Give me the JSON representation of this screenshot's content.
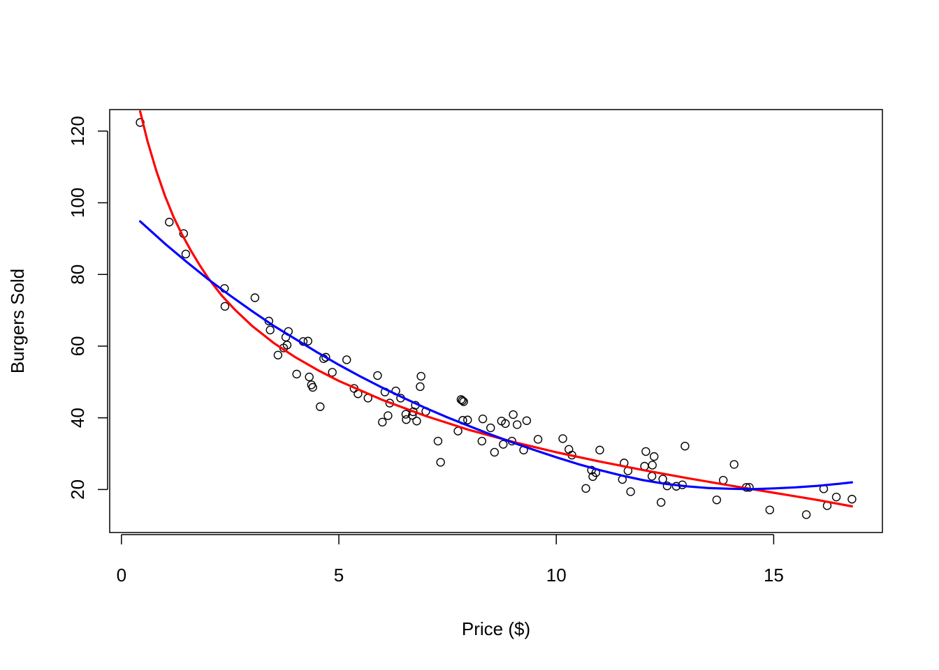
{
  "chart_data": {
    "type": "scatter",
    "title": "",
    "xlabel": "Price ($)",
    "ylabel": "Burgers Sold",
    "xlim": [
      -0.27,
      17.5
    ],
    "ylim": [
      8,
      126
    ],
    "xticks": [
      0,
      5,
      10,
      15
    ],
    "yticks": [
      20,
      40,
      60,
      80,
      100,
      120
    ],
    "grid": false,
    "legend": "none",
    "points": [
      [
        0.43,
        122.4
      ],
      [
        1.1,
        94.6
      ],
      [
        1.43,
        91.4
      ],
      [
        1.48,
        85.7
      ],
      [
        2.37,
        76.1
      ],
      [
        2.38,
        71.1
      ],
      [
        3.07,
        73.5
      ],
      [
        3.39,
        67.0
      ],
      [
        3.42,
        64.5
      ],
      [
        3.6,
        57.5
      ],
      [
        3.73,
        59.5
      ],
      [
        3.78,
        62.5
      ],
      [
        3.81,
        60.3
      ],
      [
        3.84,
        64.1
      ],
      [
        4.03,
        52.2
      ],
      [
        4.18,
        61.3
      ],
      [
        4.29,
        61.4
      ],
      [
        4.32,
        51.4
      ],
      [
        4.37,
        49.2
      ],
      [
        4.4,
        48.5
      ],
      [
        4.57,
        43.1
      ],
      [
        4.65,
        56.5
      ],
      [
        4.7,
        56.9
      ],
      [
        4.85,
        52.7
      ],
      [
        5.18,
        56.2
      ],
      [
        5.35,
        48.2
      ],
      [
        5.44,
        46.7
      ],
      [
        5.67,
        45.5
      ],
      [
        5.89,
        51.8
      ],
      [
        6.0,
        38.8
      ],
      [
        6.06,
        47.2
      ],
      [
        6.13,
        40.6
      ],
      [
        6.17,
        44.1
      ],
      [
        6.31,
        47.5
      ],
      [
        6.42,
        45.5
      ],
      [
        6.54,
        41.0
      ],
      [
        6.55,
        39.5
      ],
      [
        6.69,
        40.7
      ],
      [
        6.71,
        41.7
      ],
      [
        6.76,
        43.5
      ],
      [
        6.79,
        39.1
      ],
      [
        6.87,
        48.7
      ],
      [
        6.89,
        51.6
      ],
      [
        7.0,
        41.8
      ],
      [
        7.28,
        33.5
      ],
      [
        7.34,
        27.6
      ],
      [
        7.74,
        36.3
      ],
      [
        7.81,
        45.1
      ],
      [
        7.84,
        44.8
      ],
      [
        7.85,
        39.3
      ],
      [
        7.87,
        44.5
      ],
      [
        7.96,
        39.4
      ],
      [
        8.29,
        33.5
      ],
      [
        8.31,
        39.7
      ],
      [
        8.49,
        37.2
      ],
      [
        8.58,
        30.4
      ],
      [
        8.74,
        39.1
      ],
      [
        8.78,
        32.6
      ],
      [
        8.83,
        38.4
      ],
      [
        8.98,
        33.5
      ],
      [
        9.01,
        40.9
      ],
      [
        9.1,
        38.1
      ],
      [
        9.25,
        31.0
      ],
      [
        9.32,
        39.2
      ],
      [
        9.58,
        34.0
      ],
      [
        10.15,
        34.2
      ],
      [
        10.29,
        31.2
      ],
      [
        10.36,
        29.6
      ],
      [
        10.68,
        20.3
      ],
      [
        10.81,
        25.4
      ],
      [
        10.84,
        23.6
      ],
      [
        10.91,
        24.7
      ],
      [
        11.0,
        31.0
      ],
      [
        11.52,
        22.8
      ],
      [
        11.56,
        27.4
      ],
      [
        11.65,
        25.2
      ],
      [
        11.71,
        19.4
      ],
      [
        12.03,
        26.5
      ],
      [
        12.06,
        30.6
      ],
      [
        12.2,
        23.7
      ],
      [
        12.21,
        26.8
      ],
      [
        12.25,
        29.2
      ],
      [
        12.41,
        16.4
      ],
      [
        12.45,
        22.9
      ],
      [
        12.55,
        21.0
      ],
      [
        12.76,
        20.9
      ],
      [
        12.9,
        21.3
      ],
      [
        12.96,
        32.1
      ],
      [
        13.69,
        17.1
      ],
      [
        13.84,
        22.6
      ],
      [
        14.09,
        27.0
      ],
      [
        14.37,
        20.6
      ],
      [
        14.44,
        20.6
      ],
      [
        14.91,
        14.3
      ],
      [
        15.75,
        13.0
      ],
      [
        16.15,
        20.2
      ],
      [
        16.23,
        15.5
      ],
      [
        16.44,
        17.9
      ],
      [
        16.8,
        17.3
      ]
    ],
    "series": [
      {
        "color": "#ff0000",
        "x": [
          0.43,
          0.6,
          0.8,
          1.0,
          1.2,
          1.4,
          1.6,
          1.8,
          2.0,
          2.3,
          2.6,
          3.0,
          3.5,
          4.0,
          4.5,
          5.0,
          6.0,
          7.0,
          8.0,
          9.0,
          10.0,
          11.0,
          12.0,
          13.0,
          14.0,
          15.0,
          16.0,
          16.8
        ],
        "y": [
          125.5,
          117.2,
          109.0,
          102.0,
          96.0,
          91.0,
          86.6,
          82.6,
          78.9,
          74.2,
          70.3,
          65.7,
          60.9,
          56.9,
          53.4,
          50.3,
          45.0,
          40.5,
          36.6,
          33.3,
          30.4,
          27.8,
          25.4,
          23.2,
          21.1,
          19.1,
          17.1,
          15.3
        ]
      },
      {
        "color": "#0000ff",
        "x": [
          0.43,
          1.0,
          1.5,
          2.0,
          2.5,
          3.0,
          3.5,
          4.0,
          4.5,
          5.0,
          5.5,
          6.0,
          6.5,
          7.0,
          7.5,
          8.0,
          8.5,
          9.0,
          9.5,
          10.0,
          10.5,
          11.0,
          11.5,
          12.0,
          12.5,
          13.0,
          13.5,
          14.0,
          14.5,
          15.0,
          15.5,
          16.0,
          16.5,
          16.8
        ],
        "y": [
          94.8,
          88.6,
          83.5,
          78.6,
          74.1,
          69.8,
          65.7,
          62.0,
          58.3,
          54.8,
          51.5,
          48.4,
          45.5,
          42.7,
          40.1,
          37.7,
          35.3,
          33.1,
          31.0,
          29.0,
          27.1,
          25.4,
          23.9,
          22.6,
          21.6,
          20.9,
          20.4,
          20.2,
          20.1,
          20.3,
          20.6,
          21.0,
          21.6,
          22.0
        ]
      }
    ]
  }
}
